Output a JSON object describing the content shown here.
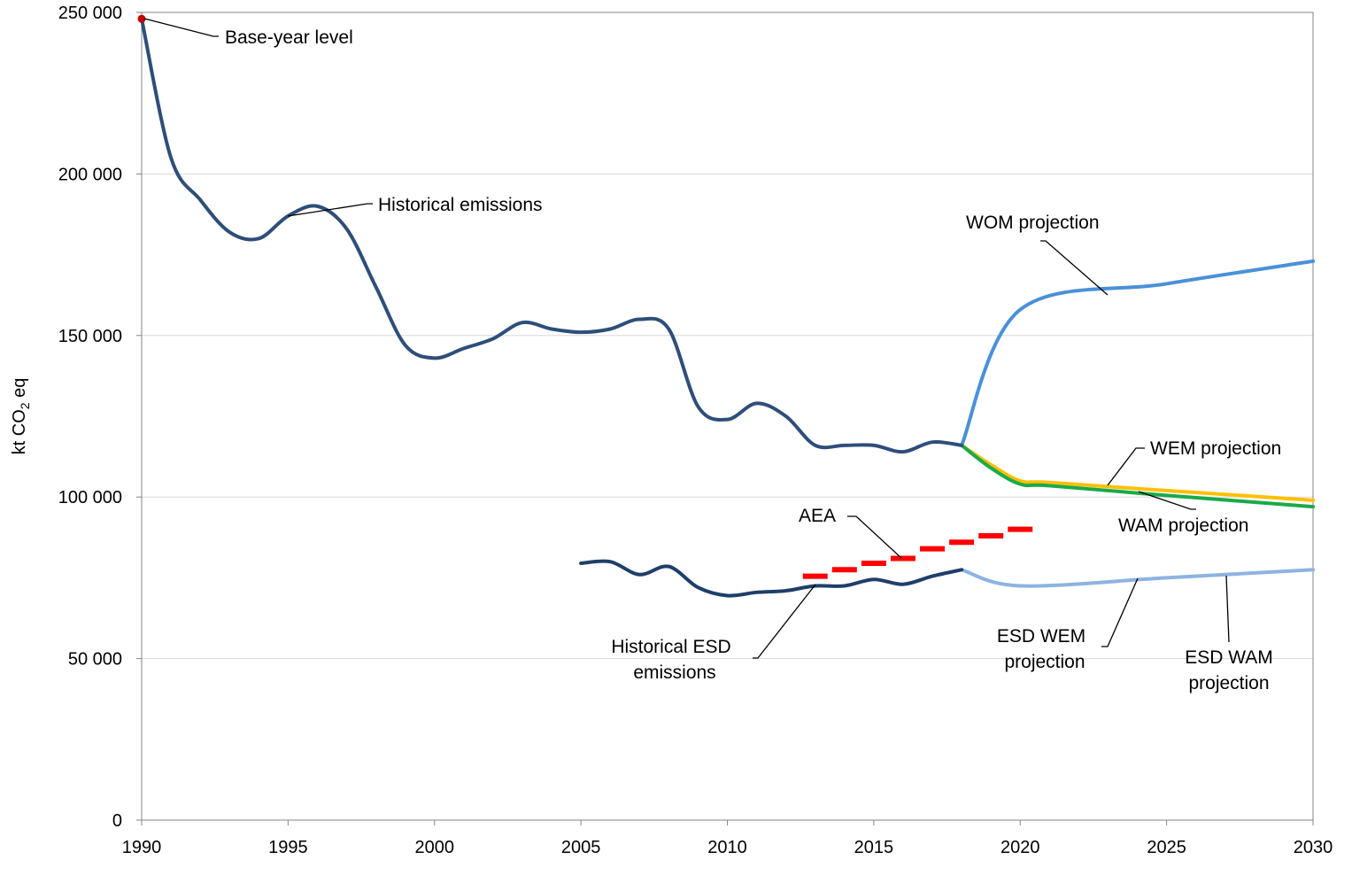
{
  "chart_data": {
    "type": "line",
    "ylabel": {
      "main": "kt CO",
      "sub": "2",
      "rest": " eq"
    },
    "xlim": [
      1990,
      2030
    ],
    "ylim": [
      0,
      250000
    ],
    "x_ticks": [
      "1990",
      "1995",
      "2000",
      "2005",
      "2010",
      "2015",
      "2020",
      "2025",
      "2030"
    ],
    "y_ticks": [
      "0",
      "50 000",
      "100 000",
      "150 000",
      "200 000",
      "250 000"
    ],
    "grid": "horizontal",
    "colors": {
      "historical": "#2e4e7a",
      "esd_historical": "#1f3f6a",
      "wom": "#4a90d9",
      "wem": "#ffc000",
      "wam": "#1aaa4a",
      "esd_wam": "#8db3e2",
      "aea": "#ff0000",
      "base_point": "#c00000"
    },
    "series": [
      {
        "key": "historical",
        "x": [
          1990,
          1991,
          1992,
          1993,
          1994,
          1995,
          1996,
          1997,
          1998,
          1999,
          2000,
          2001,
          2002,
          2003,
          2004,
          2005,
          2006,
          2007,
          2008,
          2009,
          2010,
          2011,
          2012,
          2013,
          2014,
          2015,
          2016,
          2017,
          2018
        ],
        "y": [
          248000,
          205000,
          192000,
          182000,
          180000,
          187000,
          190000,
          183000,
          165000,
          147000,
          143000,
          146000,
          149000,
          154000,
          152000,
          151000,
          152000,
          155000,
          152000,
          128000,
          124000,
          129000,
          125000,
          116000,
          116000,
          116000,
          114000,
          117000,
          116000
        ]
      },
      {
        "key": "wom",
        "x": [
          2018,
          2020,
          2025,
          2030
        ],
        "y": [
          116000,
          158000,
          166000,
          173000
        ]
      },
      {
        "key": "wem",
        "x": [
          2018,
          2019,
          2020,
          2021,
          2025,
          2030
        ],
        "y": [
          116000,
          110000,
          105000,
          104500,
          102000,
          99000
        ]
      },
      {
        "key": "wam",
        "x": [
          2018,
          2019,
          2020,
          2021,
          2025,
          2030
        ],
        "y": [
          116000,
          109000,
          104000,
          103500,
          100500,
          97000
        ]
      },
      {
        "key": "esd_historical",
        "x": [
          2005,
          2006,
          2007,
          2008,
          2009,
          2010,
          2011,
          2012,
          2013,
          2014,
          2015,
          2016,
          2017,
          2018
        ],
        "y": [
          79500,
          80000,
          76000,
          78500,
          72000,
          69500,
          70500,
          71000,
          72500,
          72500,
          74500,
          73000,
          75500,
          77500
        ]
      },
      {
        "key": "esd_wem",
        "x": [
          2018,
          2020,
          2025,
          2030
        ],
        "y": [
          78000,
          73000,
          76000,
          79000
        ]
      },
      {
        "key": "esd_wam",
        "x": [
          2018,
          2020,
          2025,
          2030
        ],
        "y": [
          77500,
          72500,
          75000,
          77500
        ]
      }
    ],
    "aea": {
      "x": [
        2013,
        2014,
        2015,
        2016,
        2017,
        2018,
        2019,
        2020
      ],
      "y": [
        75500,
        77500,
        79500,
        81000,
        84000,
        86000,
        88000,
        90000
      ]
    },
    "base_point": {
      "x": 1990,
      "y": 248000
    },
    "annotations": {
      "base_year": "Base-year level",
      "historical": "Historical emissions",
      "wom": "WOM projection",
      "wem": "WEM projection",
      "wam": "WAM projection",
      "aea": "AEA",
      "esd_hist_1": "Historical ESD",
      "esd_hist_2": "emissions",
      "esd_wem_1": "ESD WEM",
      "esd_wem_2": "projection",
      "esd_wam_1": "ESD WAM",
      "esd_wam_2": "projection"
    }
  }
}
